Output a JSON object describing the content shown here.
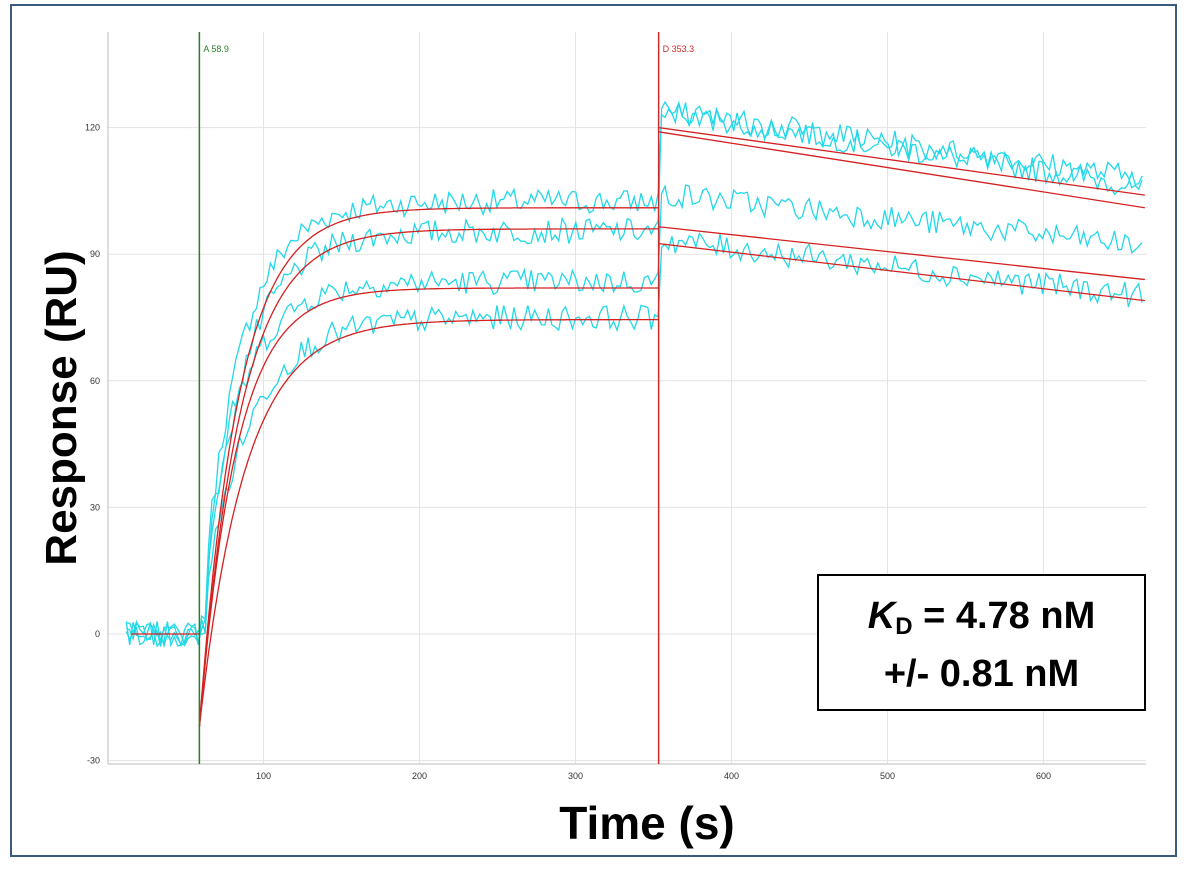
{
  "chart_data": {
    "type": "line",
    "title": "",
    "xlabel": "Time (s)",
    "ylabel": "Response (RU)",
    "xlim": [
      10,
      665
    ],
    "ylim": [
      -30,
      140
    ],
    "x_ticks": [
      100,
      200,
      300,
      400,
      500,
      600
    ],
    "y_ticks": [
      -30,
      0,
      30,
      60,
      90,
      120
    ],
    "grid": true,
    "markers": [
      {
        "label": "A 58.9",
        "x": 58.9,
        "color": "#2a7d2a"
      },
      {
        "label": "D 353.3",
        "x": 353.3,
        "color": "#cc2a2a"
      }
    ],
    "association": {
      "start": 58.9,
      "end": 353.3
    },
    "dissociation_end": 665,
    "fits": [
      {
        "plateau": 101,
        "kobs": 0.04,
        "end_value": 100.5
      },
      {
        "plateau": 96,
        "kobs": 0.038,
        "end_value": 103.0
      },
      {
        "plateau": 82,
        "kobs": 0.042,
        "end_value": 84.0
      },
      {
        "plateau": 74.5,
        "kobs": 0.034,
        "end_value": 79.0
      }
    ],
    "dissociation_fits": [
      {
        "start": 119,
        "end": 101
      },
      {
        "start": 120,
        "end": 104
      },
      {
        "start": 96.5,
        "end": 84
      },
      {
        "start": 92.5,
        "end": 79
      }
    ],
    "data_color": "#22d8e8",
    "fit_color": "#d42020"
  },
  "annotation": {
    "kd_symbol": "K",
    "kd_sub": "D",
    "kd_value": " = 4.78 nM",
    "kd_error": "+/- 0.81 nM"
  }
}
